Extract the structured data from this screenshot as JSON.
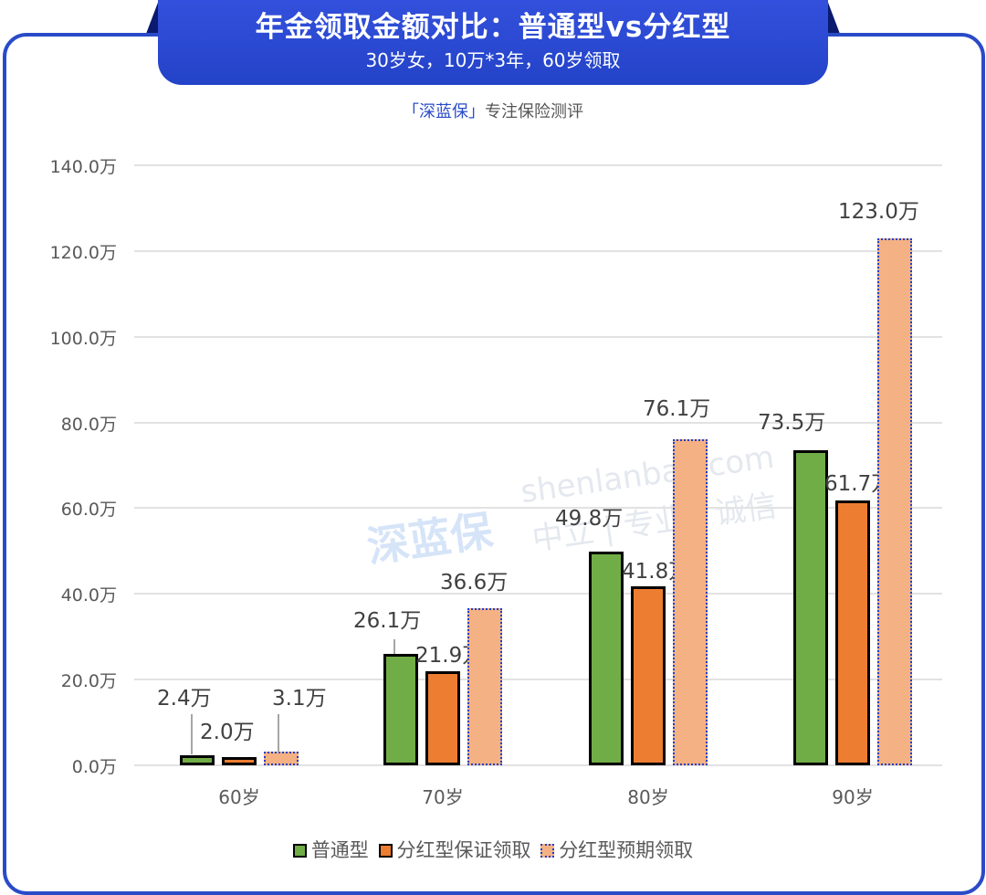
{
  "header": {
    "title": "年金领取金额对比：普通型vs分红型",
    "subtitle": "30岁女，10万*3年，60岁领取"
  },
  "brand": {
    "open_bracket": "「",
    "name": "深蓝保",
    "close_bracket": "」",
    "tagline": "专注保险测评"
  },
  "watermark": {
    "logo": "深蓝保",
    "url": "shenlanbao.com",
    "slogan": "中立 | 专业 | 诚信"
  },
  "colors": {
    "frame": "#2a4bc8",
    "普通型": "#70ad47",
    "分红型保证领取": "#ed7d31",
    "分红型预期领取": "#f4b183",
    "预期边框": "#1f3fc9"
  },
  "chart_data": {
    "type": "bar",
    "title": "年金领取金额对比：普通型vs分红型",
    "subtitle": "30岁女，10万*3年，60岁领取",
    "categories": [
      "60岁",
      "70岁",
      "80岁",
      "90岁"
    ],
    "series": [
      {
        "name": "普通型",
        "values": [
          2.4,
          26.1,
          49.8,
          73.5
        ],
        "labels": [
          "2.4万",
          "26.1万",
          "49.8万",
          "73.5万"
        ]
      },
      {
        "name": "分红型保证领取",
        "values": [
          2.0,
          21.9,
          41.8,
          61.7
        ],
        "labels": [
          "2.0万",
          "21.9万",
          "41.8万",
          "61.7万"
        ]
      },
      {
        "name": "分红型预期领取",
        "values": [
          3.1,
          36.6,
          76.1,
          123.0
        ],
        "labels": [
          "3.1万",
          "36.6万",
          "76.1万",
          "123.0万"
        ]
      }
    ],
    "xlabel": "",
    "ylabel": "",
    "unit": "万",
    "ylim": [
      0,
      140
    ],
    "yticks": [
      "0.0万",
      "20.0万",
      "40.0万",
      "60.0万",
      "80.0万",
      "100.0万",
      "120.0万",
      "140.0万"
    ],
    "grid": true,
    "legend_position": "bottom"
  }
}
